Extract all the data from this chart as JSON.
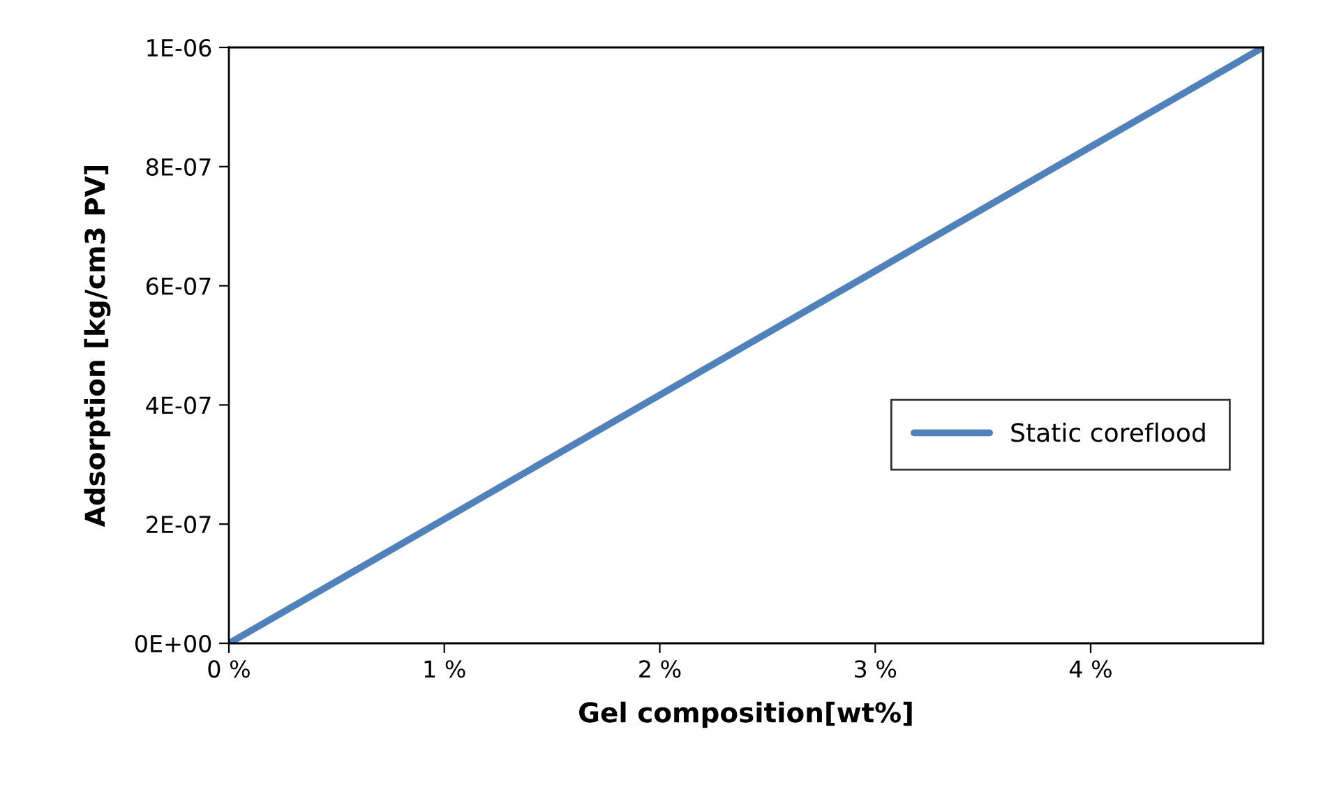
{
  "chart_data": {
    "type": "line",
    "xlabel": "Gel composition[wt%]",
    "ylabel": "Adsorption [kg/cm3 PV]",
    "x": [
      0,
      4.8
    ],
    "series": [
      {
        "name": "Static coreflood",
        "color": "#4f81bd",
        "values": [
          0,
          1e-06
        ]
      }
    ],
    "xlim": [
      0,
      4.8
    ],
    "xticks": [
      {
        "value": 0,
        "label": "0 %"
      },
      {
        "value": 1,
        "label": "1 %"
      },
      {
        "value": 2,
        "label": "2 %"
      },
      {
        "value": 3,
        "label": "3 %"
      },
      {
        "value": 4,
        "label": "4 %"
      }
    ],
    "ylim": [
      0,
      1e-06
    ],
    "yticks": [
      {
        "value": 0,
        "label": "0E+00"
      },
      {
        "value": 2e-07,
        "label": "2E-07"
      },
      {
        "value": 4e-07,
        "label": "4E-07"
      },
      {
        "value": 6e-07,
        "label": "6E-07"
      },
      {
        "value": 8e-07,
        "label": "8E-07"
      },
      {
        "value": 1e-06,
        "label": "1E-06"
      }
    ],
    "grid": false,
    "legend": "center right",
    "marker": "none",
    "line_style": "solid"
  }
}
